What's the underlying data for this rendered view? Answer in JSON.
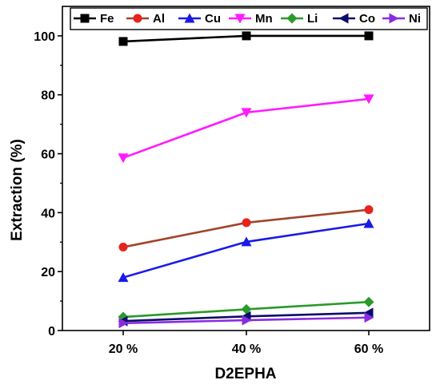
{
  "chart_data": {
    "type": "line",
    "title": "",
    "xlabel": "D2EPHA",
    "ylabel": "Extraction (%)",
    "categories": [
      "20 %",
      "40 %",
      "60 %"
    ],
    "ylim": [
      0,
      110
    ],
    "yticks": [
      0,
      20,
      40,
      60,
      80,
      100
    ],
    "grid": false,
    "legend_position": "top",
    "series": [
      {
        "name": "Fe",
        "values": [
          98.1,
          100.0,
          100.0
        ],
        "color": "#000000",
        "marker": "square"
      },
      {
        "name": "Al",
        "values": [
          28.3,
          36.6,
          41.0
        ],
        "color": "#e8221c",
        "line_color": "#a0442a",
        "marker": "circle"
      },
      {
        "name": "Cu",
        "values": [
          18.0,
          30.1,
          36.3
        ],
        "color": "#1a1ae6",
        "marker": "triangle-up"
      },
      {
        "name": "Mn",
        "values": [
          58.6,
          74.0,
          78.6
        ],
        "color": "#ff1aff",
        "marker": "triangle-down"
      },
      {
        "name": "Li",
        "values": [
          4.6,
          7.2,
          9.7
        ],
        "color": "#2a9a2a",
        "marker": "diamond"
      },
      {
        "name": "Co",
        "values": [
          3.2,
          4.8,
          6.0
        ],
        "color": "#0c0c6b",
        "marker": "triangle-left"
      },
      {
        "name": "Ni",
        "values": [
          2.5,
          3.5,
          4.4
        ],
        "color": "#8a2be2",
        "marker": "triangle-right"
      }
    ]
  }
}
